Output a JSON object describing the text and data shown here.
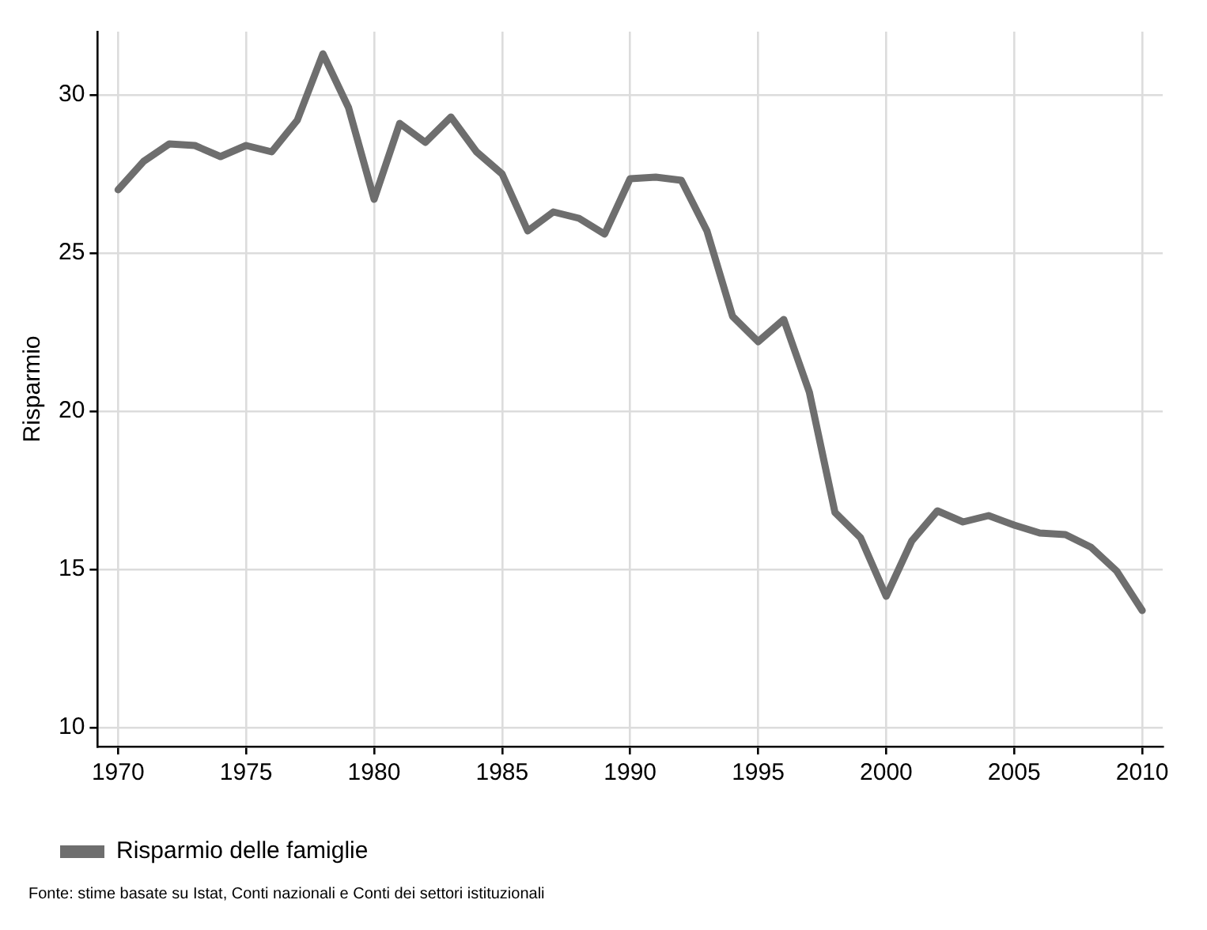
{
  "chart_data": {
    "type": "line",
    "ylabel": "Risparmio",
    "annotations": [
      "Fonte: stime basate su Istat, Conti nazionali e Conti dei settori istituzionali"
    ],
    "x": [
      1970,
      1971,
      1972,
      1973,
      1974,
      1975,
      1976,
      1977,
      1978,
      1979,
      1980,
      1981,
      1982,
      1983,
      1984,
      1985,
      1986,
      1987,
      1988,
      1989,
      1990,
      1991,
      1992,
      1993,
      1994,
      1995,
      1996,
      1997,
      1998,
      1999,
      2000,
      2001,
      2002,
      2003,
      2004,
      2005,
      2006,
      2007,
      2008,
      2009,
      2010
    ],
    "series": [
      {
        "name": "Risparmio delle famiglie",
        "color": "#6e6e6e",
        "values": [
          27.0,
          27.9,
          28.45,
          28.4,
          28.05,
          28.4,
          28.2,
          29.2,
          31.3,
          29.6,
          26.7,
          29.1,
          28.5,
          29.3,
          28.2,
          27.5,
          25.7,
          26.3,
          26.1,
          25.6,
          27.35,
          27.4,
          27.3,
          25.7,
          23.0,
          22.2,
          22.9,
          20.6,
          16.8,
          16.0,
          14.15,
          15.9,
          16.85,
          16.5,
          16.7,
          16.4,
          16.15,
          16.1,
          15.7,
          14.95,
          13.7
        ]
      }
    ],
    "xlim": [
      1969.2,
      2010.8
    ],
    "ylim": [
      9.4,
      32
    ],
    "xticks": [
      1970,
      1975,
      1980,
      1985,
      1990,
      1995,
      2000,
      2005,
      2010
    ],
    "yticks": [
      10,
      15,
      20,
      25,
      30
    ],
    "grid": true,
    "legend": "bottom",
    "marker": "none",
    "line_style": "solid"
  }
}
